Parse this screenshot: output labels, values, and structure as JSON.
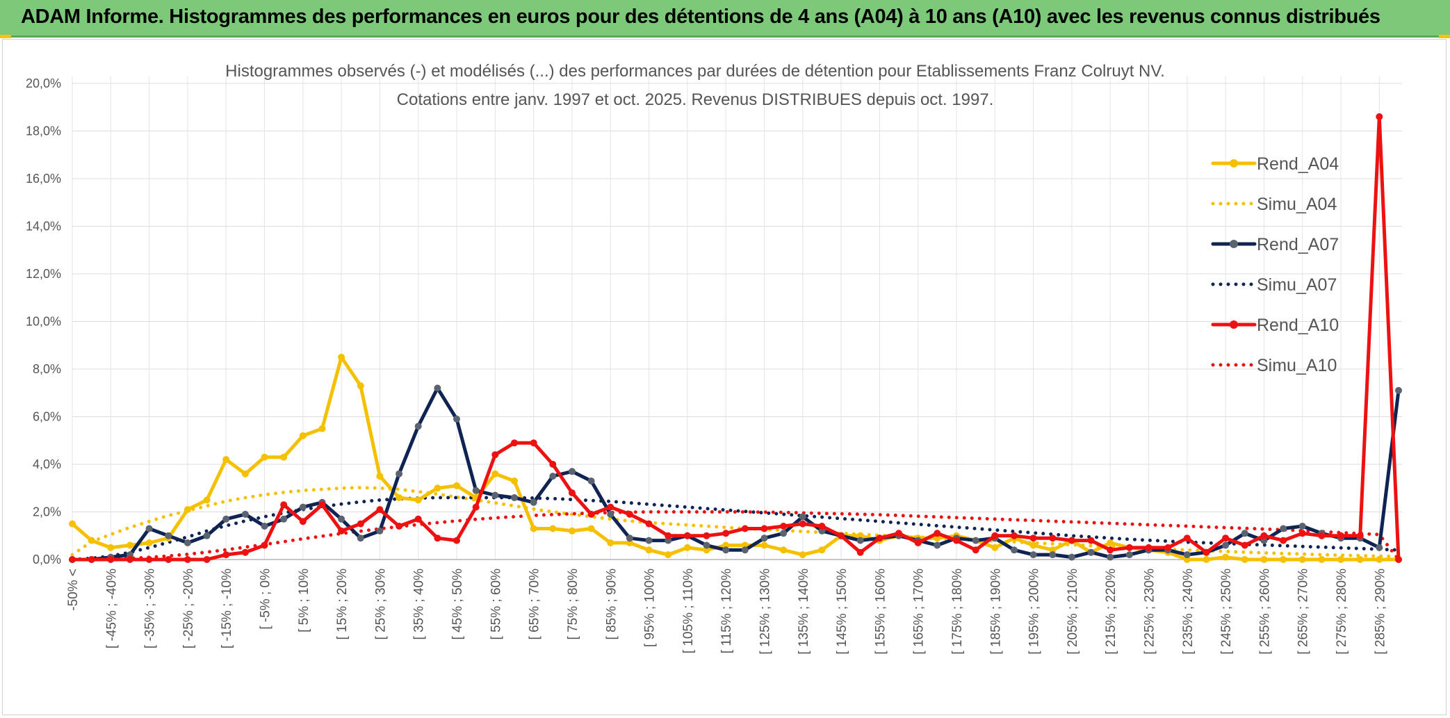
{
  "banner": {
    "title": "ADAM Informe. Histogrammes des performances en euros pour des détentions de 4 ans (A04) à 10 ans (A10) avec les revenus connus distribués"
  },
  "colors": {
    "banner_bg": "#7cc97a",
    "rend_a04": "#f5c000",
    "simu_a04": "#f5c000",
    "rend_a07": "#0f2452",
    "rend_a07_marker": "#5b6370",
    "simu_a07": "#0f2452",
    "rend_a10": "#ee1111",
    "simu_a10": "#ee1111"
  },
  "chart_data": {
    "type": "line",
    "title_line1": "Histogrammes observés (-) et modélisés (...) des performances par durées de détention pour Etablissements Franz Colruyt NV.",
    "title_line2": "Cotations entre janv. 1997 et oct. 2025. Revenus DISTRIBUES depuis oct. 1997.",
    "xlabel": "",
    "ylabel": "",
    "ylim": [
      0,
      20
    ],
    "y_ticks": [
      "0,0%",
      "2,0%",
      "4,0%",
      "6,0%",
      "8,0%",
      "10,0%",
      "12,0%",
      "14,0%",
      "16,0%",
      "18,0%",
      "20,0%"
    ],
    "grid": true,
    "legend_position": "right",
    "x_tick_labels": [
      "-50% <",
      "[ -45% ; -40%",
      "[ -35% ; -30%",
      "[ -25% ; -20%",
      "[ -15% ; -10%",
      "[ -5% ; 0%",
      "[ 5% ; 10%",
      "[ 15% ; 20%",
      "[ 25% ; 30%",
      "[ 35% ; 40%",
      "[ 45% ; 50%",
      "[ 55% ; 60%",
      "[ 65% ; 70%",
      "[ 75% ; 80%",
      "[ 85% ; 90%",
      "[ 95% ; 100%",
      "[ 105% ; 110%",
      "[ 115% ; 120%",
      "[ 125% ; 130%",
      "[ 135% ; 140%",
      "[ 145% ; 150%",
      "[ 155% ; 160%",
      "[ 165% ; 170%",
      "[ 175% ; 180%",
      "[ 185% ; 190%",
      "[ 195% ; 200%",
      "[ 205% ; 210%",
      "[ 215% ; 220%",
      "[ 225% ; 230%",
      "[ 235% ; 240%",
      "[ 245% ; 250%",
      "[ 255% ; 260%",
      "[ 265% ; 270%",
      "[ 275% ; 280%",
      "[ 285% ; 290%"
    ],
    "n_points": 70,
    "series": [
      {
        "name": "Rend_A04",
        "style": "solid",
        "values": [
          1.5,
          0.8,
          0.5,
          0.6,
          0.7,
          0.9,
          2.1,
          2.5,
          4.2,
          3.6,
          4.3,
          4.3,
          5.2,
          5.5,
          8.5,
          7.3,
          3.5,
          2.6,
          2.5,
          3.0,
          3.1,
          2.6,
          3.6,
          3.3,
          1.3,
          1.3,
          1.2,
          1.3,
          0.7,
          0.7,
          0.4,
          0.2,
          0.5,
          0.4,
          0.6,
          0.6,
          0.6,
          0.4,
          0.2,
          0.4,
          1.0,
          1.0,
          0.8,
          1.0,
          0.9,
          0.9,
          1.0,
          0.8,
          0.5,
          0.9,
          0.6,
          0.4,
          0.8,
          0.3,
          0.7,
          0.5,
          0.4,
          0.3,
          0.0,
          0.0,
          0.1,
          0.0,
          0.0,
          0.0,
          0.0,
          0.0,
          0.0,
          0.0,
          0.0,
          0.0
        ]
      },
      {
        "name": "Simu_A04",
        "style": "dotted",
        "values": [
          0.2,
          0.75,
          1.05,
          1.35,
          1.6,
          1.85,
          2.05,
          2.25,
          2.45,
          2.6,
          2.72,
          2.82,
          2.9,
          2.95,
          3.0,
          3.02,
          3.0,
          2.95,
          2.85,
          2.75,
          2.62,
          2.5,
          2.38,
          2.25,
          2.12,
          2.0,
          1.9,
          1.8,
          1.7,
          1.62,
          1.55,
          1.5,
          1.45,
          1.4,
          1.35,
          1.3,
          1.26,
          1.22,
          1.18,
          1.14,
          1.1,
          1.06,
          1.02,
          0.98,
          0.94,
          0.9,
          0.86,
          0.82,
          0.78,
          0.74,
          0.7,
          0.66,
          0.62,
          0.58,
          0.54,
          0.5,
          0.46,
          0.43,
          0.4,
          0.37,
          0.34,
          0.31,
          0.28,
          0.25,
          0.23,
          0.2,
          0.18,
          0.16,
          0.14,
          0.12
        ]
      },
      {
        "name": "Rend_A07",
        "style": "solid",
        "values": [
          0.0,
          0.0,
          0.1,
          0.2,
          1.3,
          1.0,
          0.7,
          1.0,
          1.7,
          1.9,
          1.4,
          1.7,
          2.2,
          2.4,
          1.7,
          0.9,
          1.2,
          3.6,
          5.6,
          7.2,
          5.9,
          2.9,
          2.7,
          2.6,
          2.4,
          3.5,
          3.7,
          3.3,
          1.9,
          0.9,
          0.8,
          0.8,
          1.0,
          0.6,
          0.4,
          0.4,
          0.9,
          1.1,
          1.8,
          1.2,
          1.0,
          0.8,
          0.9,
          1.0,
          0.8,
          0.6,
          0.9,
          0.8,
          0.9,
          0.4,
          0.2,
          0.2,
          0.1,
          0.3,
          0.1,
          0.2,
          0.4,
          0.4,
          0.2,
          0.3,
          0.6,
          1.1,
          0.8,
          1.3,
          1.4,
          1.1,
          0.9,
          0.9,
          0.5,
          7.1
        ]
      },
      {
        "name": "Simu_A07",
        "style": "dotted",
        "values": [
          0.0,
          0.05,
          0.15,
          0.3,
          0.5,
          0.72,
          0.95,
          1.2,
          1.42,
          1.62,
          1.8,
          1.96,
          2.1,
          2.22,
          2.33,
          2.42,
          2.5,
          2.55,
          2.58,
          2.6,
          2.6,
          2.6,
          2.6,
          2.6,
          2.58,
          2.56,
          2.52,
          2.48,
          2.44,
          2.38,
          2.32,
          2.26,
          2.2,
          2.14,
          2.08,
          2.02,
          1.96,
          1.9,
          1.84,
          1.78,
          1.72,
          1.66,
          1.6,
          1.54,
          1.48,
          1.42,
          1.36,
          1.3,
          1.24,
          1.18,
          1.12,
          1.06,
          1.0,
          0.95,
          0.9,
          0.85,
          0.81,
          0.77,
          0.73,
          0.7,
          0.67,
          0.64,
          0.61,
          0.58,
          0.55,
          0.52,
          0.49,
          0.46,
          0.43,
          0.4
        ]
      },
      {
        "name": "Rend_A10",
        "style": "solid",
        "values": [
          0.0,
          0.0,
          0.0,
          0.0,
          0.0,
          0.0,
          0.0,
          0.0,
          0.2,
          0.3,
          0.6,
          2.3,
          1.6,
          2.3,
          1.2,
          1.5,
          2.1,
          1.4,
          1.7,
          0.9,
          0.8,
          2.2,
          4.4,
          4.9,
          4.9,
          4.0,
          2.8,
          1.9,
          2.2,
          1.9,
          1.5,
          1.0,
          1.0,
          1.0,
          1.1,
          1.3,
          1.3,
          1.4,
          1.5,
          1.4,
          1.0,
          0.3,
          0.9,
          1.1,
          0.7,
          1.1,
          0.8,
          0.4,
          1.0,
          1.0,
          0.9,
          0.9,
          0.8,
          0.8,
          0.4,
          0.5,
          0.5,
          0.5,
          0.9,
          0.3,
          0.9,
          0.6,
          1.0,
          0.8,
          1.1,
          1.0,
          1.0,
          1.0,
          18.6,
          0.0
        ]
      },
      {
        "name": "Simu_A10",
        "style": "dotted",
        "values": [
          0.0,
          0.0,
          0.02,
          0.05,
          0.09,
          0.15,
          0.22,
          0.31,
          0.41,
          0.52,
          0.63,
          0.75,
          0.87,
          0.98,
          1.09,
          1.19,
          1.29,
          1.38,
          1.47,
          1.55,
          1.62,
          1.69,
          1.75,
          1.8,
          1.85,
          1.89,
          1.92,
          1.95,
          1.97,
          1.99,
          2.0,
          2.0,
          2.0,
          2.0,
          2.0,
          2.0,
          1.99,
          1.98,
          1.96,
          1.94,
          1.92,
          1.9,
          1.88,
          1.85,
          1.82,
          1.79,
          1.76,
          1.73,
          1.7,
          1.67,
          1.64,
          1.61,
          1.58,
          1.55,
          1.52,
          1.49,
          1.46,
          1.43,
          1.4,
          1.37,
          1.34,
          1.31,
          1.28,
          1.25,
          1.21,
          1.17,
          1.13,
          1.09,
          1.05,
          0.0
        ]
      }
    ]
  }
}
